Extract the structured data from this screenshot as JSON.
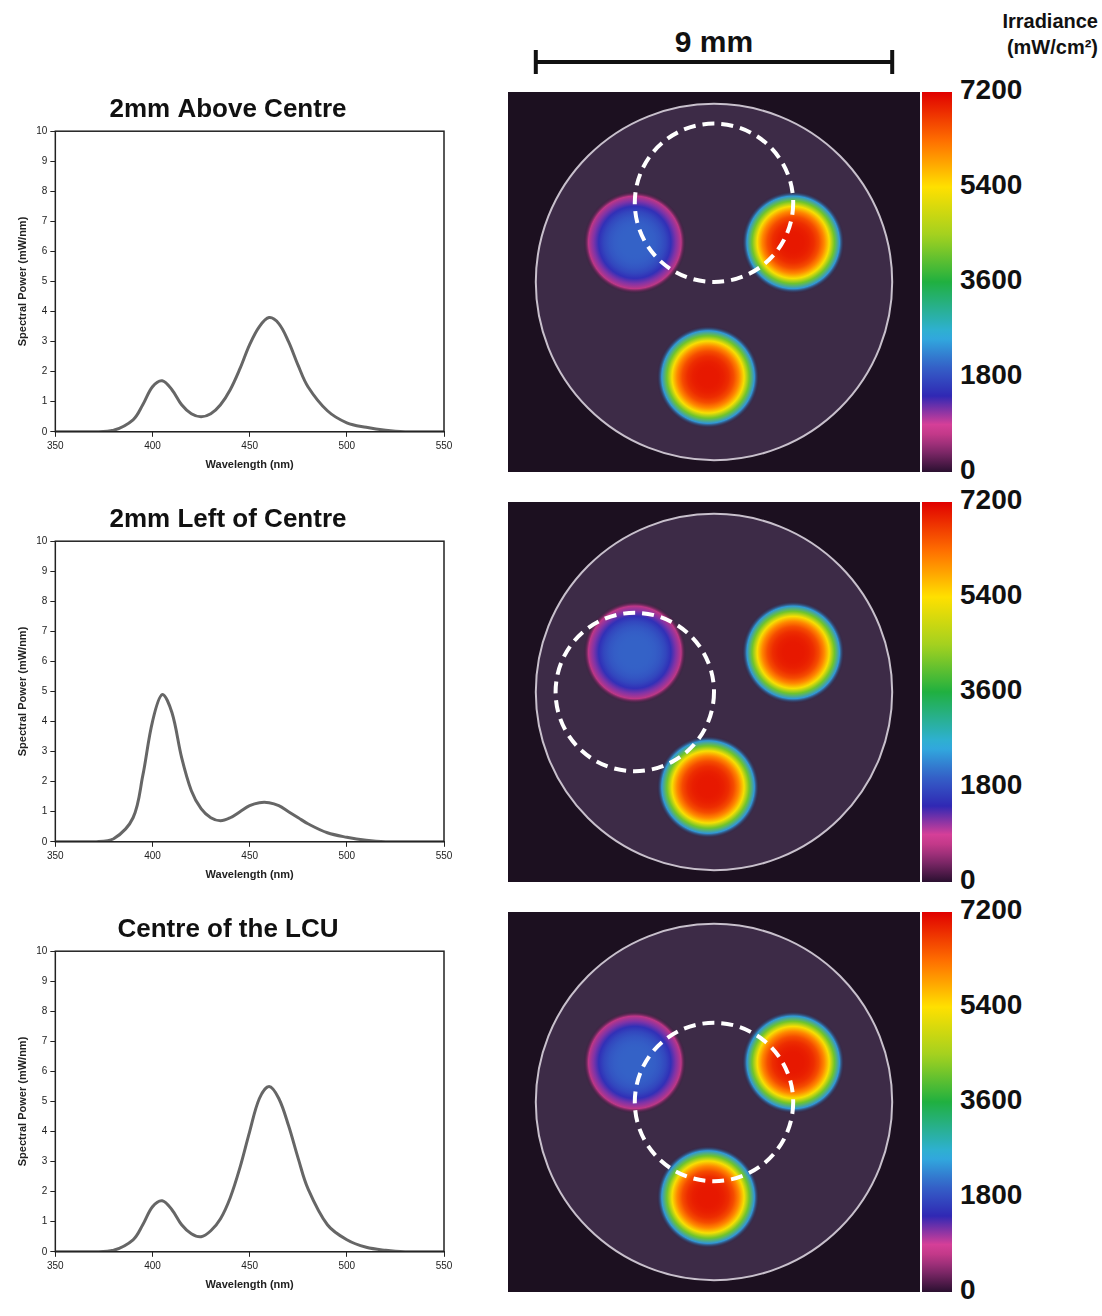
{
  "chart_data": [
    {
      "type": "line",
      "title": "2mm Above Centre",
      "x_label": "Wavelength (nm)",
      "y_label": "Spectral Power (mW/nm)",
      "x": [
        350,
        360,
        370,
        380,
        390,
        395,
        400,
        405,
        410,
        415,
        420,
        425,
        430,
        435,
        440,
        445,
        450,
        455,
        460,
        465,
        470,
        475,
        480,
        490,
        500,
        510,
        520,
        530,
        540,
        550
      ],
      "series": [
        {
          "color": "#666666",
          "values": [
            0,
            0,
            0,
            0.05,
            0.4,
            0.9,
            1.5,
            1.7,
            1.4,
            0.9,
            0.6,
            0.5,
            0.6,
            0.9,
            1.4,
            2.1,
            2.9,
            3.5,
            3.8,
            3.6,
            3.0,
            2.2,
            1.5,
            0.7,
            0.3,
            0.15,
            0.05,
            0,
            0,
            0
          ]
        }
      ],
      "xlim": [
        350,
        550
      ],
      "xticks": [
        350,
        400,
        450,
        500,
        550
      ],
      "ylim": [
        0,
        10
      ],
      "yticks": [
        0,
        1,
        2,
        3,
        4,
        5,
        6,
        7,
        8,
        9,
        10
      ],
      "grid": false
    },
    {
      "type": "line",
      "title": "2mm Left of Centre",
      "x_label": "Wavelength (nm)",
      "y_label": "Spectral Power (mW/nm)",
      "x": [
        350,
        360,
        370,
        380,
        390,
        395,
        400,
        405,
        410,
        415,
        420,
        425,
        430,
        435,
        440,
        445,
        450,
        455,
        460,
        465,
        470,
        475,
        480,
        490,
        500,
        510,
        520,
        530,
        540,
        550
      ],
      "series": [
        {
          "color": "#666666",
          "values": [
            0,
            0,
            0,
            0.1,
            0.8,
            2.2,
            4.0,
            4.9,
            4.3,
            2.8,
            1.7,
            1.1,
            0.8,
            0.7,
            0.8,
            1.0,
            1.2,
            1.3,
            1.3,
            1.2,
            1.0,
            0.8,
            0.6,
            0.3,
            0.15,
            0.05,
            0,
            0,
            0,
            0
          ]
        }
      ],
      "xlim": [
        350,
        550
      ],
      "xticks": [
        350,
        400,
        450,
        500,
        550
      ],
      "ylim": [
        0,
        10
      ],
      "yticks": [
        0,
        1,
        2,
        3,
        4,
        5,
        6,
        7,
        8,
        9,
        10
      ],
      "grid": false
    },
    {
      "type": "line",
      "title": "Centre of the LCU",
      "x_label": "Wavelength (nm)",
      "y_label": "Spectral Power (mW/nm)",
      "x": [
        350,
        360,
        370,
        380,
        390,
        395,
        400,
        405,
        410,
        415,
        420,
        425,
        430,
        435,
        440,
        445,
        450,
        455,
        460,
        465,
        470,
        475,
        480,
        490,
        500,
        510,
        520,
        530,
        540,
        550
      ],
      "series": [
        {
          "color": "#666666",
          "values": [
            0,
            0,
            0,
            0.05,
            0.4,
            0.9,
            1.5,
            1.7,
            1.4,
            0.9,
            0.6,
            0.5,
            0.7,
            1.1,
            1.8,
            2.8,
            4.0,
            5.1,
            5.5,
            5.1,
            4.2,
            3.1,
            2.1,
            0.9,
            0.4,
            0.15,
            0.05,
            0,
            0,
            0
          ]
        }
      ],
      "xlim": [
        350,
        550
      ],
      "xticks": [
        350,
        400,
        450,
        500,
        550
      ],
      "ylim": [
        0,
        10
      ],
      "yticks": [
        0,
        1,
        2,
        3,
        4,
        5,
        6,
        7,
        8,
        9,
        10
      ],
      "grid": false
    }
  ],
  "irradiance_maps": {
    "type": "heatmap",
    "colorbar_title": [
      "Irradiance",
      "(mW/cm²)"
    ],
    "colorbar": {
      "range": [
        0,
        7200
      ],
      "ticks": [
        0,
        1800,
        3600,
        5400,
        7200
      ]
    },
    "scale_bar": {
      "length": 9,
      "label": "9 mm"
    },
    "tip_diameter": 9,
    "leds": [
      {
        "x": -2.0,
        "y": 1.0,
        "radius": 1.3,
        "peak": 2000
      },
      {
        "x": 2.0,
        "y": 1.0,
        "radius": 1.3,
        "peak": 7000
      },
      {
        "x": -0.15,
        "y": -2.4,
        "radius": 1.3,
        "peak": 7000
      }
    ],
    "panels": [
      {
        "sensor_center": [
          0,
          2
        ],
        "sensor_diameter": 4
      },
      {
        "sensor_center": [
          -2,
          0
        ],
        "sensor_diameter": 4
      },
      {
        "sensor_center": [
          0,
          0
        ],
        "sensor_diameter": 4
      }
    ]
  }
}
